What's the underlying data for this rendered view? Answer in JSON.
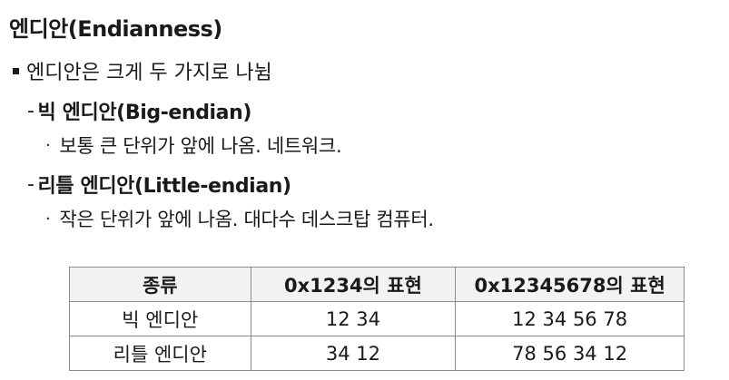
{
  "title": "엔디안(Endianness)",
  "intro": "엔디안은 크게 두 가지로 나뉨",
  "sections": [
    {
      "dash": "-",
      "heading": "빅 엔디안(Big-endian)",
      "bullet": "·",
      "desc": "보통 큰 단위가 앞에 나옴. 네트워크."
    },
    {
      "dash": "-",
      "heading": "리틀 엔디안(Little-endian)",
      "bullet": "·",
      "desc": "작은 단위가 앞에 나옴. 대다수 데스크탑 컴퓨터."
    }
  ],
  "table": {
    "headers": [
      "종류",
      "0x1234의 표현",
      "0x12345678의 표현"
    ],
    "rows": [
      [
        "빅 엔디안",
        "12 34",
        "12 34 56 78"
      ],
      [
        "리틀 엔디안",
        "34 12",
        "78 56 34 12"
      ]
    ]
  }
}
